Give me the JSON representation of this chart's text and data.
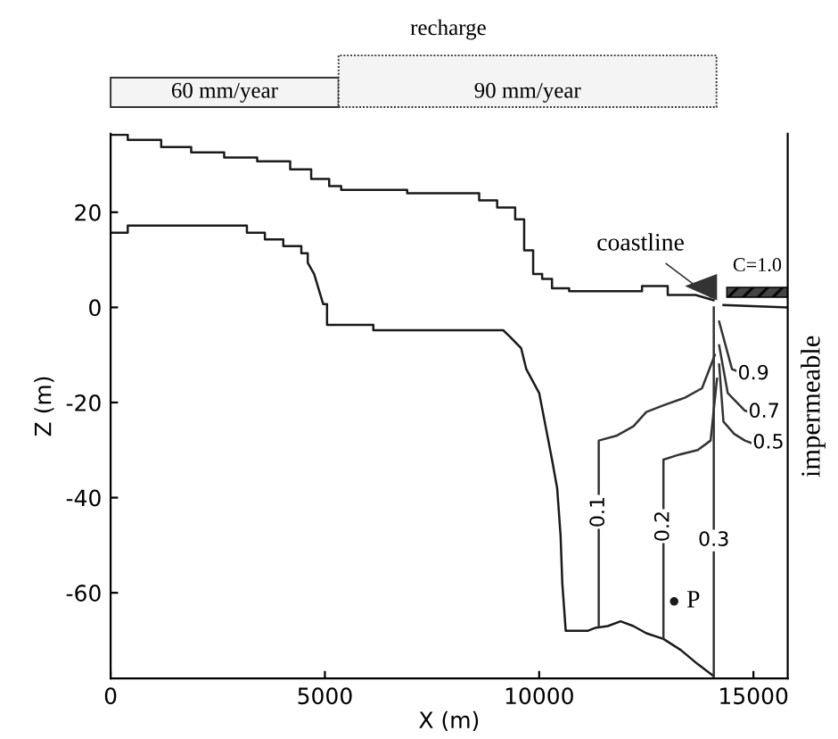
{
  "chart_data": {
    "type": "line",
    "xlabel": "X (m)",
    "ylabel": "Z (m)",
    "xlim": [
      0,
      15800
    ],
    "ylim": [
      -78,
      36.5
    ],
    "xticks": [
      0,
      5000,
      10000,
      15000
    ],
    "yticks": [
      -60,
      -40,
      -20,
      0,
      20
    ],
    "grid": false,
    "legend": false,
    "marker": "none",
    "line_style": "solid",
    "series": [
      {
        "color": "#1a1a1a",
        "x": [
          0,
          400,
          400,
          1180,
          1180,
          1880,
          1880,
          2650,
          2650,
          3420,
          3420,
          4190,
          4190,
          4680,
          4680,
          5100,
          5100,
          5380,
          5380,
          6920,
          6920,
          8600,
          8600,
          9020,
          9020,
          9440,
          9440,
          9650,
          9650,
          9860,
          9860,
          10070,
          10070,
          10300,
          10300,
          10700,
          10700,
          12400,
          12400,
          13000,
          13000,
          13650,
          14070
        ],
        "values": [
          36.3,
          36.3,
          35.2,
          35.2,
          33.7,
          33.7,
          32.6,
          32.6,
          31.5,
          31.5,
          30.7,
          30.7,
          29,
          29,
          27,
          27,
          25.5,
          25.5,
          24.7,
          24.7,
          24,
          24,
          22.5,
          22.5,
          21,
          21,
          18.5,
          18.5,
          12,
          12,
          7,
          7,
          6,
          6,
          4,
          4,
          3.4,
          3.4,
          4.5,
          4.5,
          2.6,
          2.6,
          1.5
        ]
      },
      {
        "color": "#1a1a1a",
        "x": [
          14300,
          15800
        ],
        "values": [
          0.5,
          0
        ]
      },
      {
        "color": "#1a1a1a",
        "x": [
          0,
          400,
          400,
          3180,
          3180,
          3600,
          3600,
          4030,
          4030,
          4450,
          4450,
          4600,
          4600,
          4750,
          4850,
          4960,
          5050,
          5050,
          6130,
          6130,
          9160,
          9300,
          9580,
          9700,
          10000,
          10150,
          10300,
          10420,
          10500,
          10540,
          10620,
          11130,
          11300,
          11600,
          11900,
          12200,
          12500,
          12900,
          13300,
          13700,
          14070
        ],
        "values": [
          15.7,
          15.7,
          17.2,
          17.2,
          15.7,
          15.7,
          14.3,
          14.3,
          12.9,
          12.9,
          11.4,
          11.4,
          9.4,
          7,
          4,
          0.7,
          0.7,
          -3.7,
          -3.7,
          -4.8,
          -4.8,
          -6,
          -8.6,
          -13,
          -18,
          -25,
          -32,
          -38,
          -48,
          -58,
          -68,
          -68,
          -67.4,
          -67,
          -66,
          -67,
          -68.5,
          -69.7,
          -72,
          -75,
          -77.5
        ]
      },
      {
        "color": "#333333",
        "x": [
          11390,
          11390,
          11800,
          12200,
          12500,
          12900,
          13400,
          13800,
          14100
        ],
        "values": [
          -67,
          -28,
          -27,
          -25,
          -22,
          -20.6,
          -19,
          -17,
          -10
        ]
      },
      {
        "color": "#333333",
        "x": [
          12900,
          12900,
          13250,
          13700,
          14000,
          14150
        ],
        "values": [
          -69.5,
          -32,
          -31,
          -30,
          -28,
          -15
        ]
      },
      {
        "color": "#333333",
        "x": [
          14075,
          14075
        ],
        "values": [
          -77.5,
          0
        ]
      },
      {
        "color": "#333333",
        "x": [
          14200,
          14300,
          14550,
          14800,
          14950
        ],
        "values": [
          -12,
          -24,
          -26.6,
          -28,
          -28.5
        ]
      },
      {
        "color": "#333333",
        "x": [
          14200,
          14400,
          14800,
          14900
        ],
        "values": [
          -8,
          -18,
          -21.7,
          -22
        ]
      },
      {
        "color": "#333333",
        "x": [
          14200,
          14500,
          14650
        ],
        "values": [
          -3,
          -13,
          -13.5
        ]
      },
      {
        "type": "scatter",
        "marker": "circle",
        "color": "#1a1a1a",
        "x": [
          13150
        ],
        "values": [
          -61.8
        ]
      }
    ],
    "annotations": [
      {
        "text": "0.1",
        "x": 11390,
        "y": -43
      },
      {
        "text": "0.2",
        "x": 12900,
        "y": -46
      },
      {
        "text": "0.3",
        "x": 14075,
        "y": -49
      },
      {
        "text": "0.5",
        "x": 15350,
        "y": -28.5
      },
      {
        "text": "0.7",
        "x": 15250,
        "y": -22
      },
      {
        "text": "0.9",
        "x": 15000,
        "y": -14
      },
      {
        "text": "P",
        "x": 13150,
        "y": -61.8
      },
      {
        "text": "coastline",
        "x": 14100,
        "y": 1.5
      },
      "C=1.0",
      "recharge",
      "60 mm/year",
      "90 mm/year",
      "impermeable"
    ]
  }
}
